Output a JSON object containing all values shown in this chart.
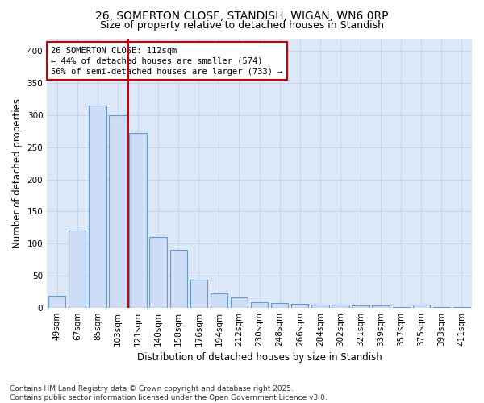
{
  "title_line1": "26, SOMERTON CLOSE, STANDISH, WIGAN, WN6 0RP",
  "title_line2": "Size of property relative to detached houses in Standish",
  "xlabel": "Distribution of detached houses by size in Standish",
  "ylabel": "Number of detached properties",
  "categories": [
    "49sqm",
    "67sqm",
    "85sqm",
    "103sqm",
    "121sqm",
    "140sqm",
    "158sqm",
    "176sqm",
    "194sqm",
    "212sqm",
    "230sqm",
    "248sqm",
    "266sqm",
    "284sqm",
    "302sqm",
    "321sqm",
    "339sqm",
    "357sqm",
    "375sqm",
    "393sqm",
    "411sqm"
  ],
  "values": [
    18,
    120,
    315,
    300,
    272,
    110,
    90,
    44,
    22,
    16,
    8,
    7,
    6,
    5,
    5,
    3,
    3,
    1,
    4,
    1,
    1
  ],
  "bar_color": "#ccddf5",
  "bar_edge_color": "#6699cc",
  "vline_color": "#cc0000",
  "annotation_text": "26 SOMERTON CLOSE: 112sqm\n← 44% of detached houses are smaller (574)\n56% of semi-detached houses are larger (733) →",
  "annotation_box_facecolor": "#ffffff",
  "annotation_box_edgecolor": "#cc0000",
  "ylim": [
    0,
    420
  ],
  "yticks": [
    0,
    50,
    100,
    150,
    200,
    250,
    300,
    350,
    400
  ],
  "grid_color": "#c8d4e8",
  "background_color": "#dce8f8",
  "footer_text": "Contains HM Land Registry data © Crown copyright and database right 2025.\nContains public sector information licensed under the Open Government Licence v3.0.",
  "title_fontsize": 10,
  "subtitle_fontsize": 9,
  "axis_label_fontsize": 8.5,
  "tick_fontsize": 7.5,
  "annotation_fontsize": 7.5,
  "footer_fontsize": 6.5,
  "bar_width": 0.85
}
